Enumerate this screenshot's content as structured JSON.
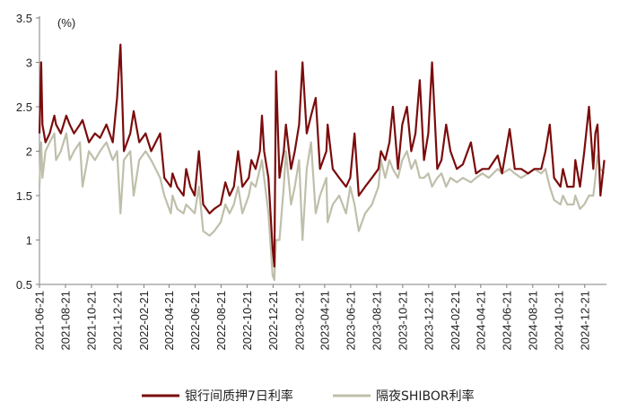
{
  "chart_data": {
    "type": "line",
    "unit_label": "(%)",
    "ylim": [
      0.5,
      3.5
    ],
    "yticks": [
      0.5,
      1,
      1.5,
      2,
      2.5,
      3,
      3.5
    ],
    "xticks": [
      "2021-06-21",
      "2021-08-21",
      "2021-10-21",
      "2021-12-21",
      "2022-02-21",
      "2022-04-21",
      "2022-06-21",
      "2022-08-21",
      "2022-10-21",
      "2022-12-21",
      "2023-02-21",
      "2023-04-21",
      "2023-06-21",
      "2023-08-21",
      "2023-10-21",
      "2023-12-21",
      "2024-02-21",
      "2024-04-21",
      "2024-06-21",
      "2024-08-21",
      "2024-10-21",
      "2024-12-21"
    ],
    "legend_position": "bottom",
    "grid": false,
    "series": [
      {
        "name": "银行间质押7日利率",
        "color": "#7b0c0c",
        "points": [
          [
            "2021-06-21",
            2.2
          ],
          [
            "2021-06-25",
            3.0
          ],
          [
            "2021-06-28",
            2.3
          ],
          [
            "2021-07-05",
            2.1
          ],
          [
            "2021-07-15",
            2.2
          ],
          [
            "2021-07-26",
            2.4
          ],
          [
            "2021-07-30",
            2.3
          ],
          [
            "2021-08-10",
            2.2
          ],
          [
            "2021-08-23",
            2.4
          ],
          [
            "2021-08-31",
            2.3
          ],
          [
            "2021-09-10",
            2.2
          ],
          [
            "2021-09-24",
            2.3
          ],
          [
            "2021-09-30",
            2.35
          ],
          [
            "2021-10-15",
            2.1
          ],
          [
            "2021-10-29",
            2.2
          ],
          [
            "2021-11-10",
            2.15
          ],
          [
            "2021-11-25",
            2.3
          ],
          [
            "2021-12-10",
            2.1
          ],
          [
            "2021-12-20",
            2.6
          ],
          [
            "2021-12-28",
            3.2
          ],
          [
            "2022-01-05",
            2.0
          ],
          [
            "2022-01-20",
            2.2
          ],
          [
            "2022-01-28",
            2.45
          ],
          [
            "2022-02-10",
            2.1
          ],
          [
            "2022-02-25",
            2.2
          ],
          [
            "2022-03-10",
            2.0
          ],
          [
            "2022-03-31",
            2.2
          ],
          [
            "2022-04-10",
            1.7
          ],
          [
            "2022-04-25",
            1.6
          ],
          [
            "2022-04-29",
            1.75
          ],
          [
            "2022-05-10",
            1.6
          ],
          [
            "2022-05-25",
            1.5
          ],
          [
            "2022-05-31",
            1.8
          ],
          [
            "2022-06-10",
            1.6
          ],
          [
            "2022-06-20",
            1.5
          ],
          [
            "2022-06-30",
            2.0
          ],
          [
            "2022-07-10",
            1.4
          ],
          [
            "2022-07-25",
            1.3
          ],
          [
            "2022-08-05",
            1.35
          ],
          [
            "2022-08-20",
            1.4
          ],
          [
            "2022-08-31",
            1.65
          ],
          [
            "2022-09-10",
            1.5
          ],
          [
            "2022-09-20",
            1.6
          ],
          [
            "2022-09-30",
            2.0
          ],
          [
            "2022-10-10",
            1.6
          ],
          [
            "2022-10-25",
            1.7
          ],
          [
            "2022-10-31",
            1.9
          ],
          [
            "2022-11-10",
            1.8
          ],
          [
            "2022-11-20",
            2.0
          ],
          [
            "2022-11-25",
            2.4
          ],
          [
            "2022-11-30",
            2.0
          ],
          [
            "2022-12-10",
            1.7
          ],
          [
            "2022-12-20",
            0.9
          ],
          [
            "2022-12-24",
            0.7
          ],
          [
            "2022-12-28",
            2.9
          ],
          [
            "2023-01-05",
            1.7
          ],
          [
            "2023-01-15",
            2.0
          ],
          [
            "2023-01-20",
            2.3
          ],
          [
            "2023-02-01",
            1.8
          ],
          [
            "2023-02-10",
            2.0
          ],
          [
            "2023-02-20",
            2.3
          ],
          [
            "2023-02-28",
            3.0
          ],
          [
            "2023-03-10",
            2.2
          ],
          [
            "2023-03-20",
            2.4
          ],
          [
            "2023-03-31",
            2.6
          ],
          [
            "2023-04-10",
            1.8
          ],
          [
            "2023-04-25",
            2.0
          ],
          [
            "2023-04-28",
            2.3
          ],
          [
            "2023-05-10",
            1.8
          ],
          [
            "2023-05-25",
            1.7
          ],
          [
            "2023-06-10",
            1.6
          ],
          [
            "2023-06-20",
            1.7
          ],
          [
            "2023-06-30",
            2.2
          ],
          [
            "2023-07-10",
            1.5
          ],
          [
            "2023-07-25",
            1.6
          ],
          [
            "2023-08-10",
            1.7
          ],
          [
            "2023-08-25",
            1.8
          ],
          [
            "2023-08-31",
            2.0
          ],
          [
            "2023-09-10",
            1.9
          ],
          [
            "2023-09-20",
            2.1
          ],
          [
            "2023-09-28",
            2.5
          ],
          [
            "2023-10-10",
            1.8
          ],
          [
            "2023-10-20",
            2.3
          ],
          [
            "2023-10-31",
            2.5
          ],
          [
            "2023-11-10",
            2.0
          ],
          [
            "2023-11-20",
            2.2
          ],
          [
            "2023-11-30",
            2.8
          ],
          [
            "2023-12-10",
            1.9
          ],
          [
            "2023-12-20",
            2.2
          ],
          [
            "2023-12-29",
            3.0
          ],
          [
            "2024-01-10",
            1.8
          ],
          [
            "2024-01-20",
            1.9
          ],
          [
            "2024-01-31",
            2.3
          ],
          [
            "2024-02-10",
            2.0
          ],
          [
            "2024-02-25",
            1.8
          ],
          [
            "2024-03-10",
            1.85
          ],
          [
            "2024-03-29",
            2.1
          ],
          [
            "2024-04-10",
            1.75
          ],
          [
            "2024-04-25",
            1.8
          ],
          [
            "2024-05-10",
            1.8
          ],
          [
            "2024-05-31",
            1.95
          ],
          [
            "2024-06-10",
            1.75
          ],
          [
            "2024-06-28",
            2.25
          ],
          [
            "2024-07-10",
            1.8
          ],
          [
            "2024-07-25",
            1.8
          ],
          [
            "2024-08-10",
            1.75
          ],
          [
            "2024-08-25",
            1.8
          ],
          [
            "2024-09-10",
            1.8
          ],
          [
            "2024-09-20",
            2.0
          ],
          [
            "2024-09-30",
            2.3
          ],
          [
            "2024-10-10",
            1.7
          ],
          [
            "2024-10-25",
            1.6
          ],
          [
            "2024-10-31",
            1.8
          ],
          [
            "2024-11-10",
            1.6
          ],
          [
            "2024-11-25",
            1.6
          ],
          [
            "2024-11-29",
            1.9
          ],
          [
            "2024-12-10",
            1.6
          ],
          [
            "2024-12-20",
            2.0
          ],
          [
            "2024-12-31",
            2.5
          ],
          [
            "2025-01-10",
            1.8
          ],
          [
            "2025-01-15",
            2.2
          ],
          [
            "2025-01-20",
            2.3
          ],
          [
            "2025-01-27",
            1.5
          ],
          [
            "2025-02-05",
            1.9
          ]
        ]
      },
      {
        "name": "隔夜SHIBOR利率",
        "color": "#bfbfab",
        "points": [
          [
            "2021-06-21",
            1.6
          ],
          [
            "2021-06-25",
            2.1
          ],
          [
            "2021-06-28",
            1.7
          ],
          [
            "2021-07-05",
            2.0
          ],
          [
            "2021-07-15",
            2.1
          ],
          [
            "2021-07-26",
            2.2
          ],
          [
            "2021-07-30",
            1.9
          ],
          [
            "2021-08-10",
            2.0
          ],
          [
            "2021-08-23",
            2.2
          ],
          [
            "2021-08-31",
            1.9
          ],
          [
            "2021-09-10",
            2.0
          ],
          [
            "2021-09-24",
            2.1
          ],
          [
            "2021-09-30",
            1.6
          ],
          [
            "2021-10-15",
            2.0
          ],
          [
            "2021-10-29",
            1.9
          ],
          [
            "2021-11-10",
            2.0
          ],
          [
            "2021-11-25",
            2.1
          ],
          [
            "2021-12-10",
            1.9
          ],
          [
            "2021-12-20",
            2.0
          ],
          [
            "2021-12-28",
            1.3
          ],
          [
            "2022-01-05",
            1.9
          ],
          [
            "2022-01-20",
            2.0
          ],
          [
            "2022-01-28",
            1.5
          ],
          [
            "2022-02-10",
            1.9
          ],
          [
            "2022-02-25",
            2.0
          ],
          [
            "2022-03-10",
            1.9
          ],
          [
            "2022-03-31",
            1.7
          ],
          [
            "2022-04-10",
            1.5
          ],
          [
            "2022-04-25",
            1.3
          ],
          [
            "2022-04-29",
            1.5
          ],
          [
            "2022-05-10",
            1.35
          ],
          [
            "2022-05-25",
            1.3
          ],
          [
            "2022-05-31",
            1.4
          ],
          [
            "2022-06-10",
            1.35
          ],
          [
            "2022-06-20",
            1.3
          ],
          [
            "2022-06-30",
            1.6
          ],
          [
            "2022-07-10",
            1.1
          ],
          [
            "2022-07-25",
            1.05
          ],
          [
            "2022-08-05",
            1.1
          ],
          [
            "2022-08-20",
            1.2
          ],
          [
            "2022-08-31",
            1.4
          ],
          [
            "2022-09-10",
            1.3
          ],
          [
            "2022-09-20",
            1.4
          ],
          [
            "2022-09-30",
            1.6
          ],
          [
            "2022-10-10",
            1.3
          ],
          [
            "2022-10-25",
            1.5
          ],
          [
            "2022-10-31",
            1.65
          ],
          [
            "2022-11-10",
            1.6
          ],
          [
            "2022-11-20",
            1.8
          ],
          [
            "2022-11-25",
            1.9
          ],
          [
            "2022-11-30",
            1.7
          ],
          [
            "2022-12-10",
            1.3
          ],
          [
            "2022-12-20",
            0.6
          ],
          [
            "2022-12-24",
            0.55
          ],
          [
            "2022-12-28",
            1.0
          ],
          [
            "2023-01-05",
            1.0
          ],
          [
            "2023-01-15",
            1.6
          ],
          [
            "2023-01-20",
            2.0
          ],
          [
            "2023-02-01",
            1.4
          ],
          [
            "2023-02-10",
            1.6
          ],
          [
            "2023-02-20",
            1.9
          ],
          [
            "2023-02-28",
            1.0
          ],
          [
            "2023-03-10",
            1.8
          ],
          [
            "2023-03-20",
            2.1
          ],
          [
            "2023-03-31",
            1.3
          ],
          [
            "2023-04-10",
            1.5
          ],
          [
            "2023-04-25",
            1.7
          ],
          [
            "2023-04-28",
            1.2
          ],
          [
            "2023-05-10",
            1.4
          ],
          [
            "2023-05-25",
            1.5
          ],
          [
            "2023-06-10",
            1.3
          ],
          [
            "2023-06-20",
            1.6
          ],
          [
            "2023-06-30",
            1.4
          ],
          [
            "2023-07-10",
            1.1
          ],
          [
            "2023-07-25",
            1.3
          ],
          [
            "2023-08-10",
            1.4
          ],
          [
            "2023-08-25",
            1.6
          ],
          [
            "2023-08-31",
            1.9
          ],
          [
            "2023-09-10",
            1.7
          ],
          [
            "2023-09-20",
            1.9
          ],
          [
            "2023-09-28",
            1.8
          ],
          [
            "2023-10-10",
            1.7
          ],
          [
            "2023-10-20",
            1.9
          ],
          [
            "2023-10-31",
            2.0
          ],
          [
            "2023-11-10",
            1.8
          ],
          [
            "2023-11-20",
            1.9
          ],
          [
            "2023-11-30",
            1.7
          ],
          [
            "2023-12-10",
            1.7
          ],
          [
            "2023-12-20",
            1.75
          ],
          [
            "2023-12-29",
            1.6
          ],
          [
            "2024-01-10",
            1.7
          ],
          [
            "2024-01-20",
            1.75
          ],
          [
            "2024-01-31",
            1.6
          ],
          [
            "2024-02-10",
            1.7
          ],
          [
            "2024-02-25",
            1.65
          ],
          [
            "2024-03-10",
            1.7
          ],
          [
            "2024-03-29",
            1.65
          ],
          [
            "2024-04-10",
            1.7
          ],
          [
            "2024-04-25",
            1.75
          ],
          [
            "2024-05-10",
            1.7
          ],
          [
            "2024-05-31",
            1.8
          ],
          [
            "2024-06-10",
            1.75
          ],
          [
            "2024-06-28",
            1.8
          ],
          [
            "2024-07-10",
            1.75
          ],
          [
            "2024-07-25",
            1.7
          ],
          [
            "2024-08-10",
            1.75
          ],
          [
            "2024-08-25",
            1.8
          ],
          [
            "2024-09-10",
            1.75
          ],
          [
            "2024-09-20",
            1.8
          ],
          [
            "2024-09-30",
            1.6
          ],
          [
            "2024-10-10",
            1.45
          ],
          [
            "2024-10-25",
            1.4
          ],
          [
            "2024-10-31",
            1.5
          ],
          [
            "2024-11-10",
            1.4
          ],
          [
            "2024-11-25",
            1.4
          ],
          [
            "2024-11-29",
            1.5
          ],
          [
            "2024-12-10",
            1.35
          ],
          [
            "2024-12-20",
            1.4
          ],
          [
            "2024-12-31",
            1.5
          ],
          [
            "2025-01-10",
            1.5
          ],
          [
            "2025-01-15",
            1.7
          ],
          [
            "2025-01-20",
            1.95
          ],
          [
            "2025-01-27",
            1.8
          ],
          [
            "2025-02-05",
            1.75
          ]
        ]
      }
    ]
  }
}
